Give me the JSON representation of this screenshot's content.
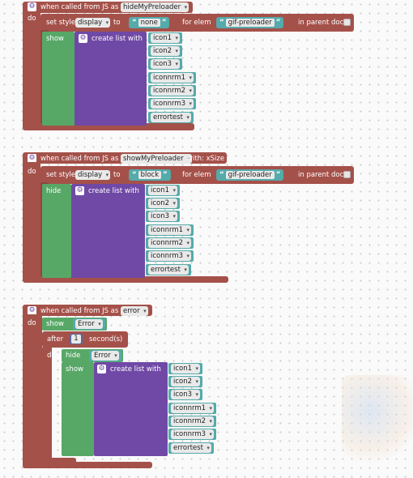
{
  "colors": {
    "procedure_red": "#a4514a",
    "control_green": "#57a866",
    "list_purple": "#7049a6",
    "component_teal": "#55aaaa",
    "math_blue": "#5b67a5",
    "workspace": "#fafafa"
  },
  "icons": {
    "gear": "gear-icon",
    "checkbox": "checkbox-icon",
    "dropdown": "chevron-down-icon"
  },
  "common": {
    "when_called": "when called from JS as",
    "do": "do",
    "set_style": "set style",
    "to": "to",
    "for_elem": "for elem",
    "in_parent_doc": "in parent doc",
    "create_list_with": "create list with",
    "open_quote": "“",
    "close_quote": "”",
    "display": "display",
    "preloader": "gif-preloader"
  },
  "block1": {
    "name": "hideMyPreloader",
    "value": "none",
    "action": "show",
    "icons": [
      "icon1",
      "icon2",
      "icon3",
      "iconnrm1",
      "iconnrm2",
      "iconnrm3",
      "errortest"
    ]
  },
  "block2": {
    "name": "showMyPreloader",
    "with_label": "with: xSize",
    "value": "block",
    "action": "hide",
    "icons": [
      "icon1",
      "icon2",
      "icon3",
      "iconnrm1",
      "iconnrm2",
      "iconnrm3",
      "errortest"
    ]
  },
  "block3": {
    "name": "error",
    "show": "show",
    "error_component": "Error",
    "after": "after",
    "seconds_value": "1",
    "seconds_label": "second(s)",
    "do": "do",
    "hide": "hide",
    "icons": [
      "icon1",
      "icon2",
      "icon3",
      "iconnrm1",
      "iconnrm2",
      "iconnrm3",
      "errortest"
    ]
  }
}
